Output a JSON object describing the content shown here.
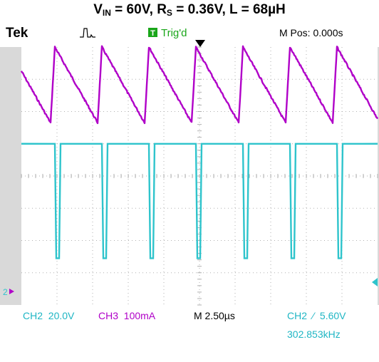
{
  "title": {
    "vin_symbol": "V",
    "vin_sub": "IN",
    "vin_value": " = 60V, ",
    "rs_symbol": "R",
    "rs_sub": "S",
    "rs_value": " = 0.36V, L = 68µH"
  },
  "scope": {
    "brand": "Tek",
    "trigger_status_badge": "T",
    "trigger_status": "Trig'd",
    "position": "M Pos: 0.000s",
    "ch2_scale": "CH2  20.0V",
    "ch3_scale": "CH3  100mA",
    "timebase": "M 2.50µs",
    "trigger_setting": "CH2  ⁄  5.60V",
    "frequency": "302.853kHz",
    "ch2_ground_marker": "2"
  },
  "colors": {
    "background": "#ffffff",
    "frame": "#d9d9d9",
    "grid": "#b0b0b0",
    "ch3_current": "#b000c8",
    "ch2_switch": "#2ec4cc",
    "label_text": "#1fb6c4",
    "trigger_badge": "#1aa61a"
  },
  "chart_data": {
    "type": "line",
    "x_unit_per_div": "2.50µs",
    "divisions": {
      "x": 10,
      "y": 8
    },
    "series": [
      {
        "name": "CH3",
        "unit": "100mA/div",
        "period_div": 1.32,
        "peak_times_div": [
          0.94,
          2.26,
          3.58,
          4.9,
          6.22,
          7.54,
          8.86
        ],
        "peak_level_div": 0.0,
        "valley_level_div": 2.35,
        "rise_time_div": 0.12
      },
      {
        "name": "CH2",
        "unit": "20.0V/div",
        "period_div": 1.32,
        "high_level_div": 3.0,
        "low_level_div": 6.55,
        "low_pulse_starts_div": [
          0.94,
          2.26,
          3.58,
          4.9,
          6.22,
          7.54,
          8.86
        ],
        "low_pulse_width_div": 0.12
      }
    ]
  }
}
